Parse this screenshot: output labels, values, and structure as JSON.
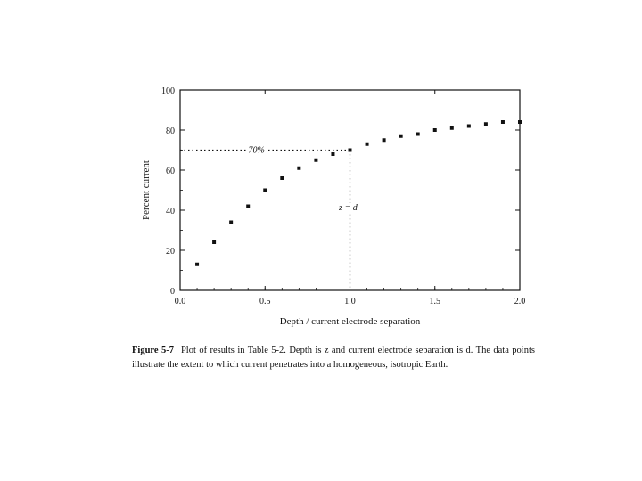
{
  "chart_data": {
    "type": "scatter",
    "xlabel": "Depth / current electrode separation",
    "ylabel": "Percent current",
    "xlim": [
      0,
      2.0
    ],
    "ylim": [
      0,
      100
    ],
    "x_ticks": [
      "0.0",
      "0.5",
      "1.0",
      "1.5",
      "2.0"
    ],
    "y_ticks": [
      "0",
      "20",
      "40",
      "60",
      "80",
      "100"
    ],
    "grid": false,
    "x": [
      0.1,
      0.2,
      0.3,
      0.4,
      0.5,
      0.6,
      0.7,
      0.8,
      0.9,
      1.0,
      1.1,
      1.2,
      1.3,
      1.4,
      1.5,
      1.6,
      1.7,
      1.8,
      1.9,
      2.0
    ],
    "y": [
      13,
      24,
      34,
      42,
      50,
      56,
      61,
      65,
      68,
      70,
      73,
      75,
      77,
      78,
      80,
      81,
      82,
      83,
      84,
      84
    ],
    "annotations": [
      {
        "label": "70%",
        "x": 0.45,
        "y": 70
      },
      {
        "label": "z = d",
        "x": 1.0,
        "y": 40
      }
    ],
    "reference_lines": {
      "x": 1.0,
      "y": 70
    }
  },
  "caption": {
    "label": "Figure 5-7",
    "text": "Plot of results in Table 5-2. Depth is z and current electrode separation is d. The data points illustrate the extent to which current penetrates into a homogeneous, isotropic Earth."
  }
}
